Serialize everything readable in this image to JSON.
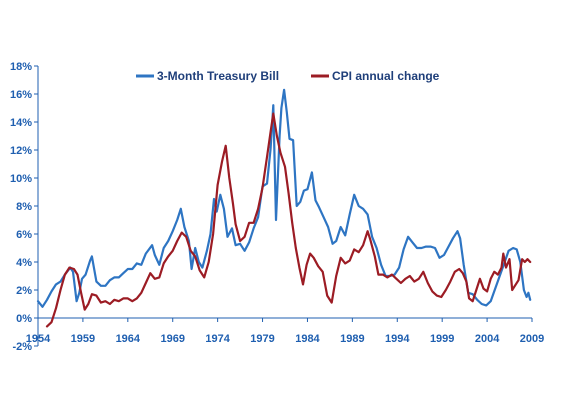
{
  "chart_data": {
    "type": "line",
    "title": "",
    "xlabel": "",
    "ylabel": "",
    "xlim": [
      1954,
      2009
    ],
    "ylim": [
      -2,
      18
    ],
    "grid": false,
    "legend_placement": "top-center",
    "x_ticks": [
      "1954",
      "1959",
      "1964",
      "1969",
      "1974",
      "1979",
      "1984",
      "1989",
      "1994",
      "1999",
      "2004",
      "2009"
    ],
    "y_ticks": [
      "-2%",
      "0%",
      "2%",
      "4%",
      "6%",
      "8%",
      "10%",
      "12%",
      "14%",
      "16%",
      "18%"
    ],
    "series": [
      {
        "name": "3-Month Treasury Bill",
        "color": "#2e75c3",
        "points": [
          [
            1954.0,
            1.2
          ],
          [
            1954.5,
            0.8
          ],
          [
            1955.0,
            1.3
          ],
          [
            1955.5,
            1.9
          ],
          [
            1956.0,
            2.4
          ],
          [
            1956.5,
            2.6
          ],
          [
            1957.0,
            3.1
          ],
          [
            1957.6,
            3.6
          ],
          [
            1957.9,
            3.3
          ],
          [
            1958.3,
            1.2
          ],
          [
            1958.6,
            1.8
          ],
          [
            1958.9,
            2.8
          ],
          [
            1959.3,
            3.1
          ],
          [
            1959.8,
            4.1
          ],
          [
            1960.0,
            4.4
          ],
          [
            1960.5,
            2.6
          ],
          [
            1961.0,
            2.3
          ],
          [
            1961.5,
            2.3
          ],
          [
            1962.0,
            2.7
          ],
          [
            1962.5,
            2.9
          ],
          [
            1963.0,
            2.9
          ],
          [
            1963.5,
            3.2
          ],
          [
            1964.0,
            3.5
          ],
          [
            1964.5,
            3.5
          ],
          [
            1965.0,
            3.9
          ],
          [
            1965.5,
            3.8
          ],
          [
            1966.0,
            4.6
          ],
          [
            1966.7,
            5.2
          ],
          [
            1967.0,
            4.5
          ],
          [
            1967.5,
            3.8
          ],
          [
            1968.0,
            5.0
          ],
          [
            1968.5,
            5.5
          ],
          [
            1969.0,
            6.2
          ],
          [
            1969.5,
            7.0
          ],
          [
            1969.9,
            7.8
          ],
          [
            1970.3,
            6.5
          ],
          [
            1970.8,
            5.5
          ],
          [
            1971.1,
            3.5
          ],
          [
            1971.5,
            5.0
          ],
          [
            1971.9,
            4.0
          ],
          [
            1972.3,
            3.6
          ],
          [
            1972.8,
            4.8
          ],
          [
            1973.2,
            6.0
          ],
          [
            1973.6,
            8.5
          ],
          [
            1973.9,
            7.6
          ],
          [
            1974.3,
            8.8
          ],
          [
            1974.7,
            7.8
          ],
          [
            1975.1,
            5.8
          ],
          [
            1975.6,
            6.4
          ],
          [
            1976.0,
            5.2
          ],
          [
            1976.5,
            5.3
          ],
          [
            1977.0,
            4.8
          ],
          [
            1977.5,
            5.4
          ],
          [
            1978.0,
            6.4
          ],
          [
            1978.5,
            7.2
          ],
          [
            1979.0,
            9.4
          ],
          [
            1979.5,
            9.6
          ],
          [
            1979.9,
            12.1
          ],
          [
            1980.2,
            15.2
          ],
          [
            1980.5,
            7.0
          ],
          [
            1980.9,
            13.0
          ],
          [
            1981.1,
            15.0
          ],
          [
            1981.4,
            16.3
          ],
          [
            1981.7,
            14.7
          ],
          [
            1982.0,
            12.8
          ],
          [
            1982.4,
            12.7
          ],
          [
            1982.8,
            8.0
          ],
          [
            1983.2,
            8.3
          ],
          [
            1983.6,
            9.1
          ],
          [
            1984.0,
            9.2
          ],
          [
            1984.5,
            10.4
          ],
          [
            1984.9,
            8.4
          ],
          [
            1985.3,
            7.9
          ],
          [
            1985.8,
            7.2
          ],
          [
            1986.3,
            6.5
          ],
          [
            1986.8,
            5.3
          ],
          [
            1987.2,
            5.5
          ],
          [
            1987.7,
            6.5
          ],
          [
            1988.2,
            5.9
          ],
          [
            1988.7,
            7.4
          ],
          [
            1989.2,
            8.8
          ],
          [
            1989.7,
            8.0
          ],
          [
            1990.2,
            7.8
          ],
          [
            1990.7,
            7.4
          ],
          [
            1991.2,
            5.8
          ],
          [
            1991.7,
            5.0
          ],
          [
            1992.2,
            3.8
          ],
          [
            1992.7,
            3.0
          ],
          [
            1993.2,
            3.0
          ],
          [
            1993.7,
            3.1
          ],
          [
            1994.2,
            3.6
          ],
          [
            1994.7,
            4.9
          ],
          [
            1995.2,
            5.8
          ],
          [
            1995.7,
            5.4
          ],
          [
            1996.2,
            5.0
          ],
          [
            1996.7,
            5.0
          ],
          [
            1997.2,
            5.1
          ],
          [
            1997.7,
            5.1
          ],
          [
            1998.2,
            5.0
          ],
          [
            1998.7,
            4.3
          ],
          [
            1999.2,
            4.5
          ],
          [
            1999.7,
            5.1
          ],
          [
            2000.2,
            5.7
          ],
          [
            2000.7,
            6.2
          ],
          [
            2001.0,
            5.7
          ],
          [
            2001.4,
            3.8
          ],
          [
            2001.9,
            1.8
          ],
          [
            2002.4,
            1.7
          ],
          [
            2002.9,
            1.3
          ],
          [
            2003.4,
            1.0
          ],
          [
            2003.9,
            0.9
          ],
          [
            2004.4,
            1.2
          ],
          [
            2004.9,
            2.1
          ],
          [
            2005.4,
            3.0
          ],
          [
            2005.9,
            3.9
          ],
          [
            2006.4,
            4.8
          ],
          [
            2006.9,
            5.0
          ],
          [
            2007.3,
            4.9
          ],
          [
            2007.7,
            4.0
          ],
          [
            2007.9,
            3.0
          ],
          [
            2008.1,
            2.0
          ],
          [
            2008.4,
            1.5
          ],
          [
            2008.6,
            1.8
          ],
          [
            2008.8,
            1.3
          ]
        ]
      },
      {
        "name": "CPI annual change",
        "color": "#9c1c24",
        "points": [
          [
            1955.0,
            -0.6
          ],
          [
            1955.5,
            -0.3
          ],
          [
            1956.0,
            0.7
          ],
          [
            1956.5,
            2.0
          ],
          [
            1957.0,
            3.1
          ],
          [
            1957.5,
            3.6
          ],
          [
            1958.0,
            3.5
          ],
          [
            1958.4,
            3.1
          ],
          [
            1958.8,
            1.8
          ],
          [
            1959.2,
            0.6
          ],
          [
            1959.6,
            1.0
          ],
          [
            1960.0,
            1.7
          ],
          [
            1960.5,
            1.6
          ],
          [
            1961.0,
            1.1
          ],
          [
            1961.5,
            1.2
          ],
          [
            1962.0,
            1.0
          ],
          [
            1962.5,
            1.3
          ],
          [
            1963.0,
            1.2
          ],
          [
            1963.5,
            1.4
          ],
          [
            1964.0,
            1.4
          ],
          [
            1964.5,
            1.2
          ],
          [
            1965.0,
            1.4
          ],
          [
            1965.5,
            1.8
          ],
          [
            1966.0,
            2.5
          ],
          [
            1966.5,
            3.2
          ],
          [
            1967.0,
            2.8
          ],
          [
            1967.5,
            2.9
          ],
          [
            1968.0,
            3.9
          ],
          [
            1968.5,
            4.4
          ],
          [
            1969.0,
            4.8
          ],
          [
            1969.5,
            5.5
          ],
          [
            1970.0,
            6.1
          ],
          [
            1970.5,
            5.8
          ],
          [
            1971.0,
            4.8
          ],
          [
            1971.5,
            4.4
          ],
          [
            1972.0,
            3.4
          ],
          [
            1972.5,
            2.9
          ],
          [
            1973.0,
            4.0
          ],
          [
            1973.5,
            6.0
          ],
          [
            1974.0,
            9.5
          ],
          [
            1974.5,
            11.2
          ],
          [
            1974.9,
            12.3
          ],
          [
            1975.3,
            10.0
          ],
          [
            1975.7,
            8.2
          ],
          [
            1976.0,
            6.7
          ],
          [
            1976.5,
            5.5
          ],
          [
            1977.0,
            5.8
          ],
          [
            1977.5,
            6.8
          ],
          [
            1978.0,
            6.8
          ],
          [
            1978.5,
            7.8
          ],
          [
            1979.0,
            9.3
          ],
          [
            1979.5,
            11.5
          ],
          [
            1979.9,
            13.3
          ],
          [
            1980.2,
            14.6
          ],
          [
            1980.6,
            13.0
          ],
          [
            1981.0,
            11.8
          ],
          [
            1981.5,
            10.8
          ],
          [
            1981.9,
            8.9
          ],
          [
            1982.3,
            6.8
          ],
          [
            1982.7,
            5.0
          ],
          [
            1983.1,
            3.6
          ],
          [
            1983.5,
            2.4
          ],
          [
            1983.9,
            3.8
          ],
          [
            1984.3,
            4.6
          ],
          [
            1984.7,
            4.3
          ],
          [
            1985.2,
            3.7
          ],
          [
            1985.7,
            3.3
          ],
          [
            1986.2,
            1.6
          ],
          [
            1986.7,
            1.1
          ],
          [
            1987.2,
            3.0
          ],
          [
            1987.7,
            4.3
          ],
          [
            1988.2,
            3.9
          ],
          [
            1988.7,
            4.1
          ],
          [
            1989.2,
            4.9
          ],
          [
            1989.7,
            4.7
          ],
          [
            1990.2,
            5.2
          ],
          [
            1990.7,
            6.2
          ],
          [
            1991.0,
            5.6
          ],
          [
            1991.5,
            4.4
          ],
          [
            1991.9,
            3.1
          ],
          [
            1992.4,
            3.1
          ],
          [
            1992.9,
            2.9
          ],
          [
            1993.4,
            3.1
          ],
          [
            1993.9,
            2.8
          ],
          [
            1994.4,
            2.5
          ],
          [
            1994.9,
            2.8
          ],
          [
            1995.4,
            3.0
          ],
          [
            1995.9,
            2.6
          ],
          [
            1996.4,
            2.8
          ],
          [
            1996.9,
            3.3
          ],
          [
            1997.4,
            2.5
          ],
          [
            1997.9,
            1.9
          ],
          [
            1998.4,
            1.6
          ],
          [
            1998.9,
            1.5
          ],
          [
            1999.4,
            2.0
          ],
          [
            1999.9,
            2.6
          ],
          [
            2000.4,
            3.3
          ],
          [
            2000.9,
            3.5
          ],
          [
            2001.3,
            3.2
          ],
          [
            2001.7,
            2.6
          ],
          [
            2002.0,
            1.4
          ],
          [
            2002.4,
            1.2
          ],
          [
            2002.8,
            2.0
          ],
          [
            2003.2,
            2.8
          ],
          [
            2003.6,
            2.1
          ],
          [
            2004.0,
            1.9
          ],
          [
            2004.4,
            2.8
          ],
          [
            2004.8,
            3.3
          ],
          [
            2005.2,
            3.1
          ],
          [
            2005.6,
            3.6
          ],
          [
            2005.8,
            4.6
          ],
          [
            2006.1,
            3.6
          ],
          [
            2006.5,
            4.2
          ],
          [
            2006.8,
            2.0
          ],
          [
            2007.1,
            2.3
          ],
          [
            2007.5,
            2.7
          ],
          [
            2007.9,
            4.2
          ],
          [
            2008.2,
            4.0
          ],
          [
            2008.5,
            4.2
          ],
          [
            2008.8,
            4.0
          ]
        ]
      }
    ]
  }
}
